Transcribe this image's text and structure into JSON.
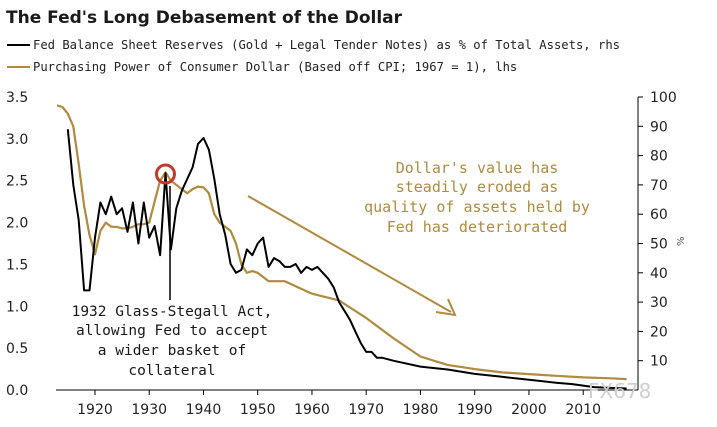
{
  "chart_data": {
    "type": "line",
    "title": "The Fed's Long Debasement of the Dollar",
    "legend": [
      {
        "label": "Fed Balance Sheet Reserves (Gold + Legal Tender Notes) as % of Total Assets, rhs",
        "color": "#000000"
      },
      {
        "label": "Purchasing Power of Consumer Dollar (Based off CPI; 1967 = 1), lhs",
        "color": "#b08a3e"
      }
    ],
    "x_ticks": [
      "1920",
      "1930",
      "1940",
      "1950",
      "1960",
      "1970",
      "1980",
      "1990",
      "2000",
      "2010"
    ],
    "x_range": [
      1913,
      2019
    ],
    "left_axis": {
      "ticks": [
        "0.0",
        "0.5",
        "1.0",
        "1.5",
        "2.0",
        "2.5",
        "3.0",
        "3.5"
      ],
      "range": [
        0,
        3.5
      ]
    },
    "right_axis": {
      "ticks": [
        "10",
        "20",
        "30",
        "40",
        "50",
        "60",
        "70",
        "80",
        "90",
        "100"
      ],
      "range": [
        0,
        100
      ],
      "unit": "%"
    },
    "series": [
      {
        "key": "reserves",
        "axis": "right",
        "color": "#000000",
        "x": [
          1915,
          1916,
          1917,
          1918,
          1919,
          1920,
          1921,
          1922,
          1923,
          1924,
          1925,
          1926,
          1927,
          1928,
          1929,
          1930,
          1931,
          1932,
          1933,
          1934,
          1935,
          1936,
          1937,
          1938,
          1939,
          1940,
          1941,
          1942,
          1943,
          1944,
          1945,
          1946,
          1947,
          1948,
          1949,
          1950,
          1951,
          1952,
          1953,
          1954,
          1955,
          1956,
          1957,
          1958,
          1959,
          1960,
          1961,
          1962,
          1963,
          1964,
          1965,
          1966,
          1967,
          1968,
          1969,
          1970,
          1971,
          1972,
          1973,
          1975,
          1980,
          1985,
          1990,
          1995,
          2000,
          2005,
          2008,
          2010,
          2012,
          2015,
          2018
        ],
        "y": [
          89,
          70,
          58,
          34,
          34,
          52,
          64,
          60,
          66,
          60,
          62,
          54,
          64,
          50,
          64,
          52,
          56,
          46,
          74,
          48,
          62,
          68,
          72,
          76,
          84,
          86,
          82,
          72,
          60,
          53,
          43,
          40,
          41,
          48,
          46,
          50,
          52,
          42,
          45,
          44,
          42,
          42,
          43,
          40,
          42,
          41,
          42,
          40,
          38,
          35,
          30,
          27,
          24,
          20,
          16,
          13,
          13,
          11,
          11,
          10,
          8,
          7,
          5.5,
          4.5,
          3.5,
          2.5,
          2,
          1.5,
          1,
          0.7,
          0.5
        ]
      },
      {
        "key": "purchasing_power",
        "axis": "left",
        "color": "#b08a3e",
        "x": [
          1913,
          1914,
          1915,
          1916,
          1917,
          1918,
          1919,
          1920,
          1921,
          1922,
          1923,
          1924,
          1925,
          1926,
          1927,
          1928,
          1929,
          1930,
          1931,
          1932,
          1933,
          1934,
          1935,
          1936,
          1937,
          1938,
          1939,
          1940,
          1941,
          1942,
          1943,
          1944,
          1945,
          1946,
          1947,
          1948,
          1949,
          1950,
          1952,
          1955,
          1960,
          1965,
          1970,
          1975,
          1980,
          1985,
          1990,
          1995,
          2000,
          2005,
          2010,
          2015,
          2018
        ],
        "y": [
          3.4,
          3.38,
          3.3,
          3.15,
          2.7,
          2.2,
          1.85,
          1.62,
          1.9,
          2.0,
          1.95,
          1.95,
          1.93,
          1.93,
          1.95,
          1.98,
          1.98,
          2.0,
          2.25,
          2.5,
          2.6,
          2.5,
          2.45,
          2.4,
          2.35,
          2.4,
          2.43,
          2.42,
          2.35,
          2.1,
          2.0,
          1.95,
          1.9,
          1.75,
          1.5,
          1.4,
          1.42,
          1.4,
          1.3,
          1.3,
          1.15,
          1.07,
          0.86,
          0.62,
          0.4,
          0.3,
          0.25,
          0.21,
          0.19,
          0.17,
          0.15,
          0.14,
          0.13
        ]
      }
    ],
    "annotations": {
      "gold_text": [
        "Dollar's value has",
        "steadily eroded as",
        "quality of assets held by",
        "Fed has deteriorated"
      ],
      "black_text": [
        "1932 Glass-Stegall Act,",
        "allowing Fed to accept",
        "a wider basket of",
        "collateral"
      ],
      "circle_year": 1933,
      "circle_value": 2.58
    },
    "watermark": "FX678"
  }
}
